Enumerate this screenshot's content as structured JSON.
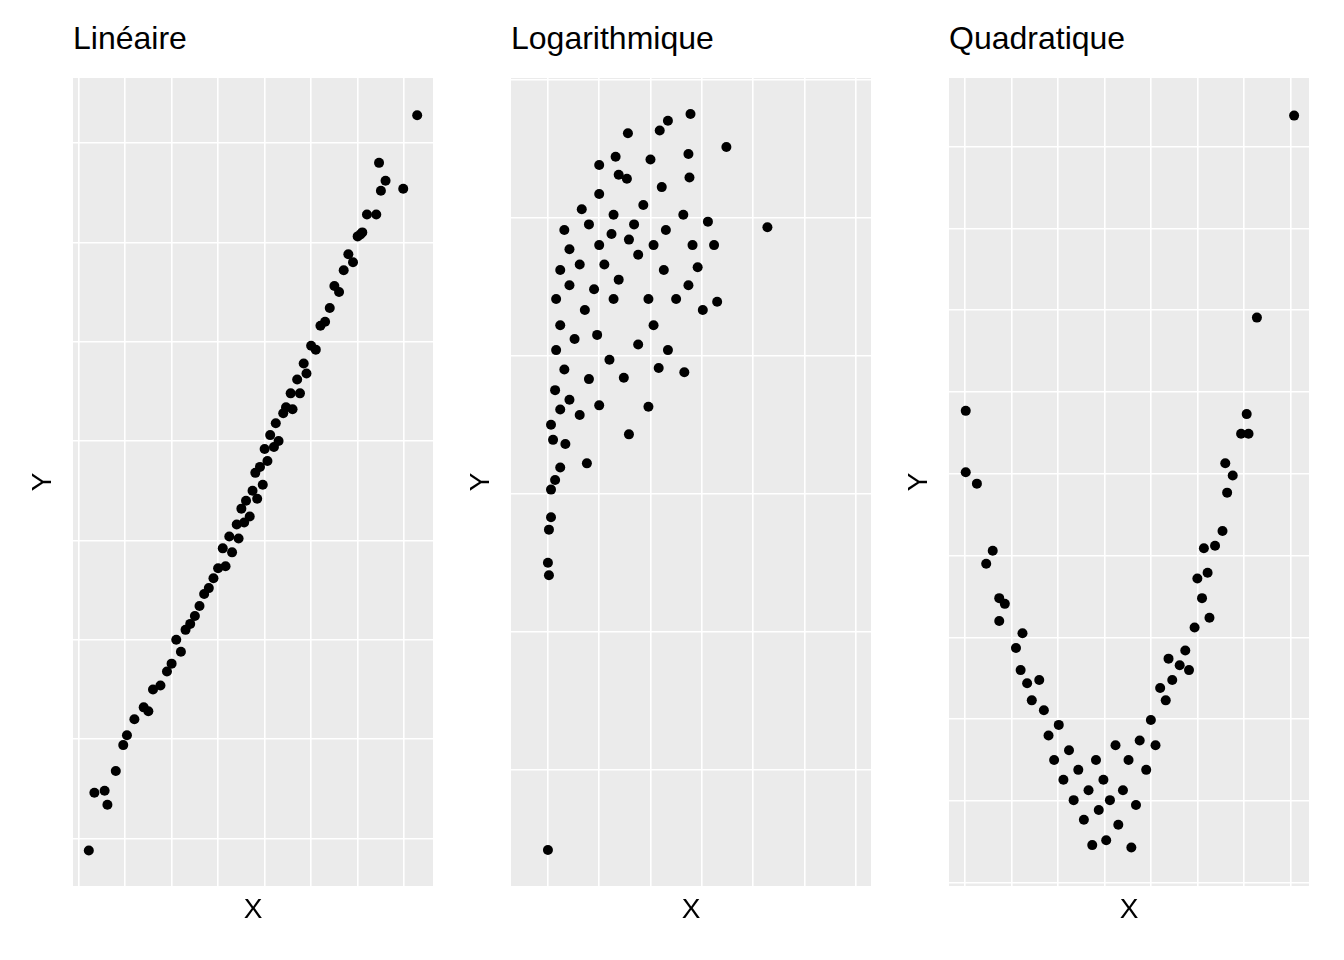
{
  "chart_data": [
    {
      "type": "scatter",
      "title": "Linéaire",
      "xlabel": "X",
      "ylabel": "Y",
      "color": "#000000",
      "marker": "circle",
      "grid": true,
      "tick_labels": false,
      "xlim": [
        -2.56,
        1.31
      ],
      "xticks": [
        -2.5,
        -2,
        -1.5,
        -1,
        -0.5,
        0,
        0.5,
        1
      ],
      "ylim": [
        -17.39,
        23.27
      ],
      "yticks": [
        -15,
        -10,
        -5,
        0,
        5,
        10,
        15,
        20
      ],
      "x": [
        -2.39,
        -2.33,
        -2.22,
        -2.19,
        -2.1,
        -2.02,
        -1.98,
        -1.9,
        -1.8,
        -1.75,
        -1.7,
        -1.62,
        -1.55,
        -1.5,
        -1.45,
        -1.4,
        -1.35,
        -1.3,
        -1.25,
        -1.2,
        -1.15,
        -1.1,
        -1.05,
        -1.0,
        -0.95,
        -0.92,
        -0.88,
        -0.85,
        -0.8,
        -0.78,
        -0.75,
        -0.72,
        -0.7,
        -0.66,
        -0.63,
        -0.6,
        -0.58,
        -0.55,
        -0.52,
        -0.5,
        -0.47,
        -0.44,
        -0.4,
        -0.38,
        -0.35,
        -0.3,
        -0.27,
        -0.22,
        -0.2,
        -0.15,
        -0.12,
        -0.08,
        -0.05,
        0.0,
        0.05,
        0.1,
        0.15,
        0.2,
        0.25,
        0.3,
        0.35,
        0.4,
        0.45,
        0.5,
        0.53,
        0.55,
        0.6,
        0.7,
        0.73,
        0.75,
        0.8,
        0.99,
        1.14
      ],
      "values": [
        -15.6,
        -12.7,
        -12.6,
        -13.3,
        -11.6,
        -10.3,
        -9.8,
        -9.0,
        -8.4,
        -8.6,
        -7.5,
        -7.3,
        -6.6,
        -6.2,
        -5.0,
        -5.6,
        -4.5,
        -4.2,
        -3.8,
        -3.3,
        -2.7,
        -2.4,
        -1.9,
        -1.4,
        -0.4,
        -1.3,
        0.2,
        -0.6,
        0.8,
        0.1,
        1.6,
        0.9,
        2.0,
        1.2,
        2.5,
        3.4,
        2.1,
        3.7,
        2.8,
        4.6,
        4.0,
        5.3,
        4.7,
        5.9,
        5.0,
        6.4,
        6.7,
        7.4,
        6.6,
        8.1,
        7.4,
        8.9,
        8.4,
        9.8,
        9.6,
        10.8,
        11.0,
        11.7,
        12.8,
        12.5,
        13.6,
        14.4,
        14.0,
        15.3,
        15.4,
        15.5,
        16.4,
        16.4,
        19.0,
        17.6,
        18.1,
        17.7,
        21.4
      ]
    },
    {
      "type": "scatter",
      "title": "Logarithmique",
      "xlabel": "X",
      "ylabel": "Y",
      "color": "#000000",
      "marker": "circle",
      "grid": true,
      "tick_labels": false,
      "xlim": [
        -0.36,
        3.15
      ],
      "xticks": [
        0,
        0.5,
        1,
        1.5,
        2,
        2.5,
        3
      ],
      "ylim": [
        -4.84,
        1.01
      ],
      "yticks": [
        -4,
        -3,
        -2,
        -1,
        0,
        1
      ],
      "x": [
        0,
        0.01,
        0,
        0.01,
        0.03,
        0.03,
        0.07,
        0.12,
        0.05,
        0.17,
        0.38,
        0.03,
        0.12,
        0.21,
        0.07,
        0.31,
        0.5,
        0.79,
        0.98,
        0.16,
        0.4,
        0.6,
        0.74,
        1.08,
        1.33,
        0.08,
        0.26,
        0.48,
        0.88,
        1.17,
        0.12,
        0.36,
        0.64,
        1.03,
        1.25,
        1.51,
        0.08,
        0.21,
        0.45,
        0.69,
        0.98,
        1.37,
        1.65,
        0.12,
        0.31,
        0.55,
        0.88,
        1.13,
        1.46,
        0.21,
        0.5,
        0.79,
        1.03,
        1.41,
        1.62,
        0.16,
        0.4,
        0.62,
        0.84,
        1.15,
        1.32,
        1.56,
        2.14,
        0.33,
        0.64,
        0.93,
        0.5,
        0.77,
        1.11,
        1.38,
        0.69,
        1.0,
        0.5,
        1.37,
        1.74,
        0.66,
        0.78,
        1.09,
        1.17,
        1.39
      ],
      "values": [
        -4.58,
        -2.59,
        -2.5,
        -2.26,
        -2.17,
        -1.97,
        -1.9,
        -1.81,
        -1.61,
        -1.64,
        -1.78,
        -1.5,
        -1.39,
        -1.32,
        -1.25,
        -1.43,
        -1.36,
        -1.57,
        -1.37,
        -1.1,
        -1.17,
        -1.03,
        -1.16,
        -1.09,
        -1.12,
        -0.96,
        -0.88,
        -0.85,
        -0.92,
        -0.96,
        -0.78,
        -0.67,
        -0.59,
        -0.78,
        -0.59,
        -0.67,
        -0.59,
        -0.49,
        -0.52,
        -0.45,
        -0.59,
        -0.49,
        -0.61,
        -0.38,
        -0.34,
        -0.34,
        -0.27,
        -0.38,
        -0.36,
        -0.23,
        -0.2,
        -0.16,
        -0.2,
        -0.2,
        -0.2,
        -0.09,
        -0.05,
        -0.12,
        -0.05,
        -0.09,
        0.02,
        -0.03,
        -0.07,
        0.06,
        0.02,
        0.09,
        0.17,
        0.28,
        0.22,
        0.29,
        0.31,
        0.42,
        0.38,
        0.46,
        0.51,
        0.44,
        0.61,
        0.63,
        0.7,
        0.75
      ]
    },
    {
      "type": "scatter",
      "title": "Quadratique",
      "xlabel": "X",
      "ylabel": "Y",
      "color": "#000000",
      "marker": "circle",
      "grid": true,
      "tick_labels": false,
      "xlim": [
        -1.67,
        2.2
      ],
      "xticks": [
        -1.5,
        -1,
        -0.5,
        0,
        0.5,
        1,
        1.5,
        2
      ],
      "ylim": [
        -1.04,
        8.84
      ],
      "yticks": [
        -1,
        0,
        1,
        2,
        3,
        4,
        5,
        6,
        7,
        8
      ],
      "x": [
        -1.49,
        -1.49,
        -1.37,
        -1.27,
        -1.2,
        -1.13,
        -1.13,
        -1.07,
        -0.95,
        -0.88,
        -0.9,
        -0.83,
        -0.78,
        -0.7,
        -0.65,
        -0.6,
        -0.54,
        -0.49,
        -0.44,
        -0.38,
        -0.33,
        -0.28,
        -0.22,
        -0.17,
        -0.13,
        -0.09,
        -0.06,
        -0.01,
        0.02,
        0.06,
        0.12,
        0.15,
        0.2,
        0.26,
        0.29,
        0.34,
        0.38,
        0.45,
        0.5,
        0.55,
        0.6,
        0.66,
        0.69,
        0.73,
        0.81,
        0.87,
        0.91,
        0.97,
        1.0,
        1.05,
        1.11,
        1.13,
        1.07,
        1.19,
        1.27,
        1.32,
        1.38,
        1.3,
        1.47,
        1.55,
        1.53,
        1.64,
        2.04
      ],
      "values": [
        4.77,
        4.02,
        3.88,
        2.9,
        3.06,
        2.48,
        2.2,
        2.41,
        1.87,
        2.05,
        1.6,
        1.44,
        1.23,
        1.48,
        1.11,
        0.8,
        0.5,
        0.93,
        0.26,
        0.62,
        0.01,
        0.38,
        -0.23,
        0.13,
        -0.54,
        0.5,
        -0.11,
        0.26,
        -0.48,
        0.01,
        0.68,
        -0.29,
        0.13,
        0.5,
        -0.57,
        -0.05,
        0.74,
        0.38,
        0.99,
        0.68,
        1.38,
        1.23,
        1.74,
        1.48,
        1.66,
        1.84,
        1.6,
        2.12,
        2.72,
        2.48,
        2.79,
        2.24,
        3.09,
        3.12,
        3.3,
        3.77,
        3.98,
        4.13,
        4.49,
        4.49,
        4.73,
        5.91,
        8.38
      ]
    }
  ]
}
